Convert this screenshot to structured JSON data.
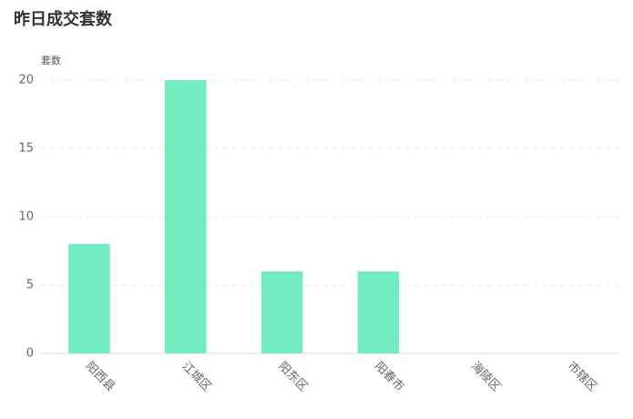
{
  "chart_data": {
    "type": "bar",
    "title": "昨日成交套数",
    "y_label": "套数",
    "categories": [
      "阳西县",
      "江城区",
      "阳东区",
      "阳春市",
      "海陵区",
      "市辖区"
    ],
    "values": [
      8,
      20,
      6,
      6,
      0,
      0
    ],
    "color": "#72ecbe",
    "ylim": [
      0,
      20
    ],
    "yticks": [
      0,
      5,
      10,
      15,
      20
    ],
    "grid": true
  }
}
